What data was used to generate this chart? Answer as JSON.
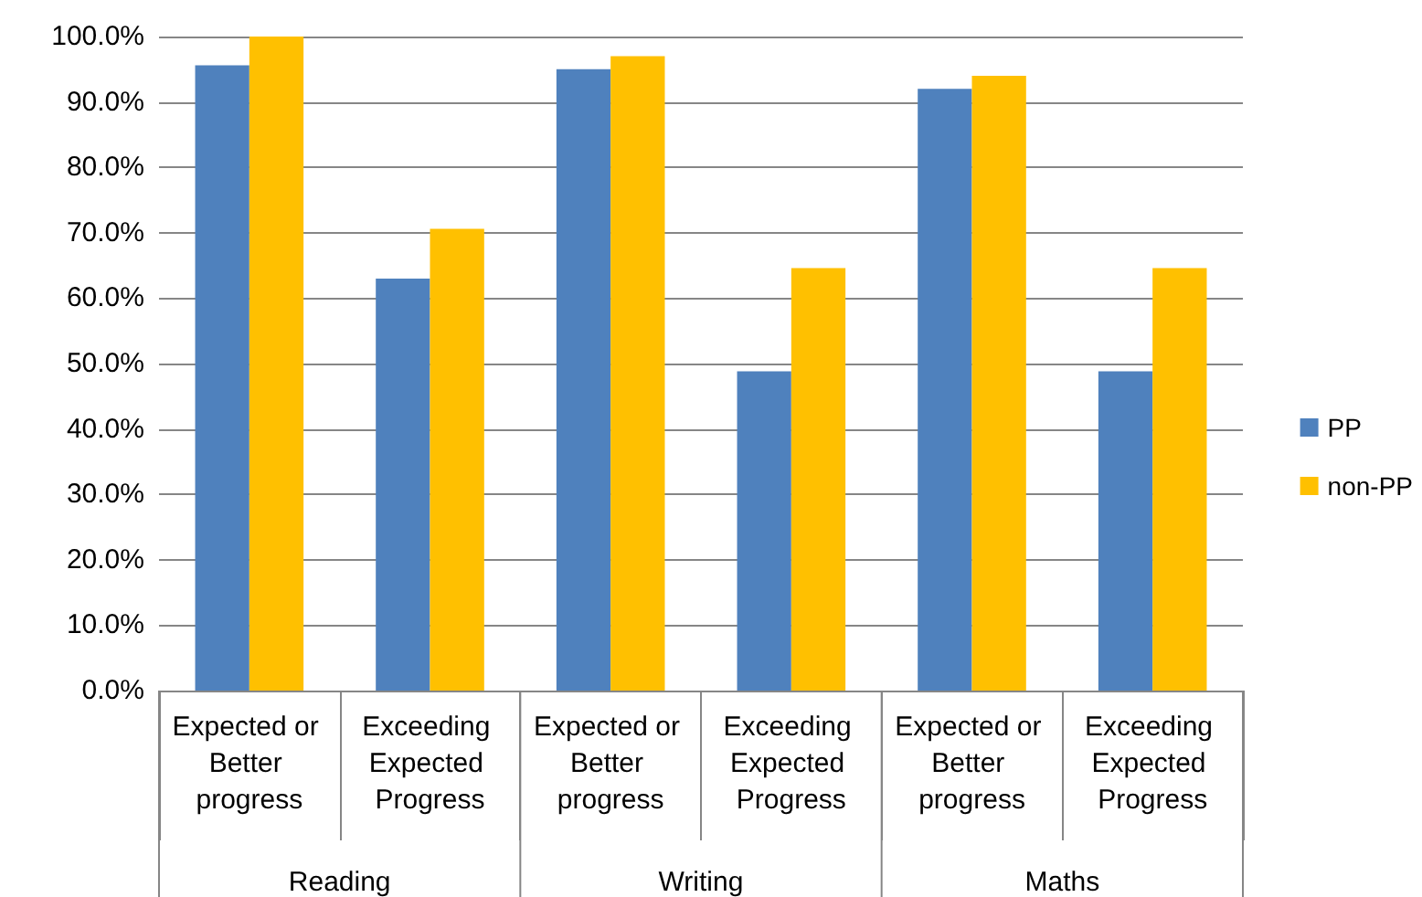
{
  "chart_data": {
    "type": "bar",
    "categories": [
      "Expected or Better progress",
      "Exceeding Expected Progress",
      "Expected or Better progress",
      "Exceeding Expected Progress",
      "Expected or Better progress",
      "Exceeding Expected Progress"
    ],
    "series": [
      {
        "name": "PP",
        "color": "#4f81bd",
        "values": [
          95.6,
          63,
          95,
          48.8,
          92,
          48.8
        ]
      },
      {
        "name": "non-PP",
        "color": "#ffc000",
        "values": [
          100,
          70.6,
          97,
          64.6,
          94,
          64.6
        ]
      }
    ],
    "annotations": [
      "Reading",
      "Writing",
      "Maths"
    ],
    "ylim": [
      0,
      100
    ],
    "yticks": [
      {
        "value": 0,
        "label": "0.0%"
      },
      {
        "value": 10,
        "label": "10.0%"
      },
      {
        "value": 20,
        "label": "20.0%"
      },
      {
        "value": 30,
        "label": "30.0%"
      },
      {
        "value": 40,
        "label": "40.0%"
      },
      {
        "value": 50,
        "label": "50.0%"
      },
      {
        "value": 60,
        "label": "60.0%"
      },
      {
        "value": 70,
        "label": "70.0%"
      },
      {
        "value": 80,
        "label": "80.0%"
      },
      {
        "value": 90,
        "label": "90.0%"
      },
      {
        "value": 100,
        "label": "100.0%"
      }
    ],
    "grid": "y",
    "legend": "right"
  }
}
